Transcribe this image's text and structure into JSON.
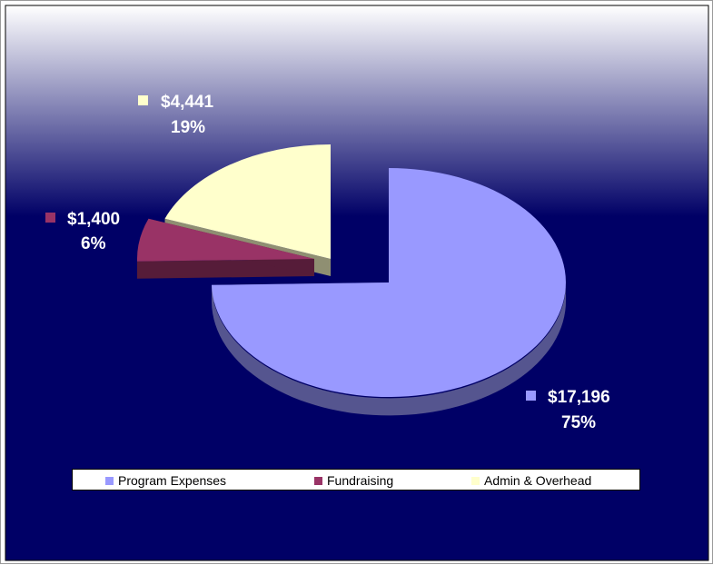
{
  "colors": {
    "background_top": "#ffffff",
    "background_bottom": "#000066",
    "label_text": "#ffffff"
  },
  "chart_data": {
    "type": "pie",
    "style": "3d-exploded",
    "title": "",
    "slices": [
      {
        "name": "Program Expenses",
        "value": 17196,
        "label": "$17,196",
        "percent": "75%",
        "color": "#9999ff",
        "side_color": "#55558f",
        "exploded": false
      },
      {
        "name": "Fundraising",
        "value": 1400,
        "label": "$1,400",
        "percent": "6%",
        "color": "#993366",
        "side_color": "#561c39",
        "exploded": true
      },
      {
        "name": "Admin & Overhead",
        "value": 4441,
        "label": "$4,441",
        "percent": "19%",
        "color": "#ffffcc",
        "side_color": "#8f8f72",
        "exploded": true
      }
    ],
    "legend": {
      "position": "bottom",
      "items": [
        "Program Expenses",
        "Fundraising",
        "Admin & Overhead"
      ]
    }
  }
}
